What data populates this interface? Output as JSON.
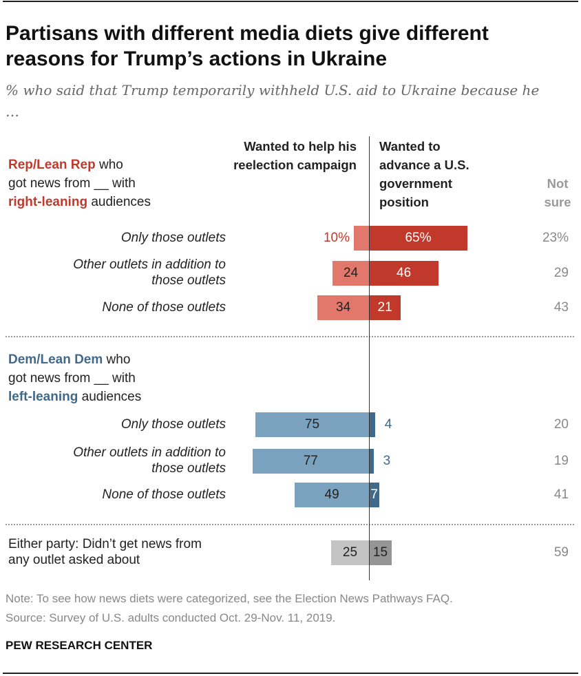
{
  "title": "Partisans with different media diets give different reasons for Trump’s actions in Ukraine",
  "subtitle": "% who said that Trump temporarily withheld U.S. aid to Ukraine because he …",
  "columns": {
    "reelection": "Wanted to help his reelection campaign",
    "government": "Wanted to advance a U.S. government position",
    "not_sure": "Not sure"
  },
  "groups": {
    "rep": {
      "party": "Rep/Lean Rep",
      "who": " who",
      "line2": "got news from __ with",
      "lean": "right-leaning",
      "aud": " audiences"
    },
    "dem": {
      "party": "Dem/Lean Dem",
      "who": " who",
      "line2": "got news from __ with",
      "lean": "left-leaning",
      "aud": " audiences"
    }
  },
  "colors": {
    "rep_light": "#e1786b",
    "rep_dark": "#c0392b",
    "rep_text": "#c0392b",
    "dem_light": "#7ba3bf",
    "dem_dark": "#41698a",
    "dem_text": "#41698a",
    "none_light": "#c4c4c4",
    "none_dark": "#959595",
    "not_sure": "#888888"
  },
  "chart_data": {
    "type": "bar",
    "title": "Partisans with different media diets give different reasons for Trump’s actions in Ukraine",
    "series": [
      "Wanted to help his reelection campaign",
      "Wanted to advance a U.S. government position",
      "Not sure"
    ],
    "rows": [
      {
        "group": "rep",
        "label": "Only those outlets",
        "reelection": 10,
        "government": 65,
        "not_sure": 23,
        "labels": [
          "10%",
          "65%",
          "23%"
        ]
      },
      {
        "group": "rep",
        "label": "Other outlets in addition to those outlets",
        "reelection": 24,
        "government": 46,
        "not_sure": 29,
        "labels": [
          "24",
          "46",
          "29"
        ]
      },
      {
        "group": "rep",
        "label": "None of those outlets",
        "reelection": 34,
        "government": 21,
        "not_sure": 43,
        "labels": [
          "34",
          "21",
          "43"
        ]
      },
      {
        "group": "dem",
        "label": "Only those outlets",
        "reelection": 75,
        "government": 4,
        "not_sure": 20,
        "labels": [
          "75",
          "4",
          "20"
        ]
      },
      {
        "group": "dem",
        "label": "Other outlets in addition to those outlets",
        "reelection": 77,
        "government": 3,
        "not_sure": 19,
        "labels": [
          "77",
          "3",
          "19"
        ]
      },
      {
        "group": "dem",
        "label": "None of those outlets",
        "reelection": 49,
        "government": 7,
        "not_sure": 41,
        "labels": [
          "49",
          "7",
          "41"
        ]
      },
      {
        "group": "none",
        "label": "Either party: Didn’t get news from any outlet asked about",
        "reelection": 25,
        "government": 15,
        "not_sure": 59,
        "labels": [
          "25",
          "15",
          "59"
        ]
      }
    ]
  },
  "note": "Note: To see how news diets were categorized, see the Election News Pathways FAQ.",
  "source": "Source: Survey of U.S. adults conducted Oct. 29-Nov. 11, 2019.",
  "brand": "PEW RESEARCH CENTER"
}
